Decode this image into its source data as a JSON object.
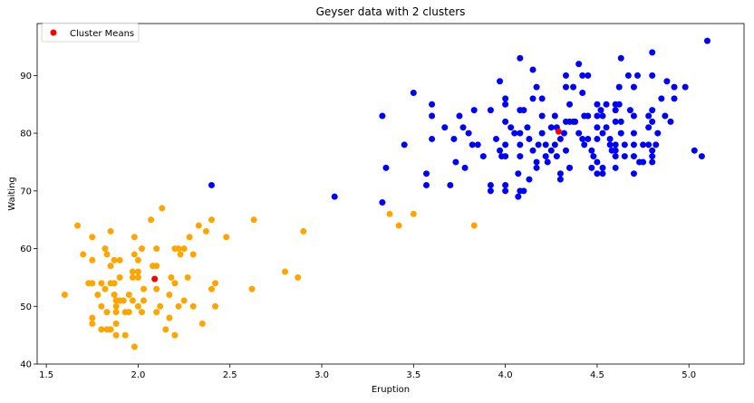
{
  "chart_data": {
    "type": "scatter",
    "title": "Geyser data with 2 clusters",
    "xlabel": "Eruption",
    "ylabel": "Waiting",
    "xlim": [
      1.45,
      5.3
    ],
    "ylim": [
      40,
      99
    ],
    "xticks": [
      "1.5",
      "2.0",
      "2.5",
      "3.0",
      "3.5",
      "4.0",
      "4.5",
      "5.0"
    ],
    "yticks": [
      "40",
      "50",
      "60",
      "70",
      "80",
      "90"
    ],
    "grid": false,
    "legend": {
      "position": "top-left",
      "label": "Cluster Means"
    },
    "colors": {
      "cluster_1": "#ffa500",
      "cluster_2": "#0000ff",
      "means": "#ff0000"
    },
    "series": [
      {
        "color": "#ffa500",
        "points": [
          [
            1.6,
            52
          ],
          [
            1.67,
            64
          ],
          [
            1.7,
            59
          ],
          [
            1.73,
            54
          ],
          [
            1.75,
            47
          ],
          [
            1.75,
            48
          ],
          [
            1.75,
            62
          ],
          [
            1.75,
            58
          ],
          [
            1.75,
            54
          ],
          [
            1.78,
            52
          ],
          [
            1.8,
            50
          ],
          [
            1.8,
            46
          ],
          [
            1.8,
            54
          ],
          [
            1.82,
            53
          ],
          [
            1.82,
            60
          ],
          [
            1.83,
            59
          ],
          [
            1.83,
            46
          ],
          [
            1.83,
            49
          ],
          [
            1.85,
            57
          ],
          [
            1.85,
            54
          ],
          [
            1.85,
            63
          ],
          [
            1.85,
            46
          ],
          [
            1.87,
            58
          ],
          [
            1.87,
            52
          ],
          [
            1.87,
            54
          ],
          [
            1.88,
            51
          ],
          [
            1.88,
            50
          ],
          [
            1.88,
            49
          ],
          [
            1.88,
            47
          ],
          [
            1.88,
            45
          ],
          [
            1.9,
            51
          ],
          [
            1.9,
            55
          ],
          [
            1.9,
            58
          ],
          [
            1.92,
            51
          ],
          [
            1.93,
            45
          ],
          [
            1.93,
            49
          ],
          [
            1.95,
            49
          ],
          [
            1.95,
            52
          ],
          [
            1.97,
            56
          ],
          [
            1.97,
            55
          ],
          [
            1.97,
            51
          ],
          [
            1.98,
            59
          ],
          [
            1.98,
            62
          ],
          [
            2.0,
            58
          ],
          [
            2.0,
            56
          ],
          [
            2.0,
            55
          ],
          [
            2.0,
            50
          ],
          [
            1.98,
            43
          ],
          [
            2.02,
            60
          ],
          [
            2.02,
            49
          ],
          [
            2.03,
            53
          ],
          [
            2.03,
            51
          ],
          [
            2.07,
            65
          ],
          [
            2.08,
            57
          ],
          [
            2.1,
            60
          ],
          [
            2.1,
            53
          ],
          [
            2.1,
            49
          ],
          [
            2.12,
            50
          ],
          [
            2.13,
            67
          ],
          [
            2.15,
            46
          ],
          [
            2.17,
            52
          ],
          [
            2.17,
            48
          ],
          [
            2.18,
            55
          ],
          [
            2.2,
            60
          ],
          [
            2.2,
            54
          ],
          [
            2.2,
            45
          ],
          [
            2.22,
            60
          ],
          [
            2.22,
            50
          ],
          [
            2.23,
            59
          ],
          [
            2.25,
            60
          ],
          [
            2.25,
            51
          ],
          [
            2.27,
            55
          ],
          [
            2.28,
            62
          ],
          [
            2.3,
            59
          ],
          [
            2.3,
            50
          ],
          [
            2.33,
            64
          ],
          [
            2.35,
            47
          ],
          [
            2.37,
            63
          ],
          [
            2.4,
            65
          ],
          [
            2.4,
            53
          ],
          [
            2.42,
            54
          ],
          [
            2.42,
            50
          ],
          [
            2.48,
            62
          ],
          [
            2.62,
            53
          ],
          [
            2.63,
            65
          ],
          [
            2.8,
            56
          ],
          [
            2.87,
            55
          ],
          [
            2.9,
            63
          ],
          [
            3.37,
            66
          ],
          [
            3.42,
            64
          ],
          [
            3.5,
            66
          ],
          [
            3.83,
            64
          ],
          [
            2.1,
            57
          ]
        ]
      },
      {
        "color": "#0000ff",
        "points": [
          [
            2.4,
            71
          ],
          [
            3.07,
            69
          ],
          [
            3.33,
            83
          ],
          [
            3.33,
            68
          ],
          [
            3.35,
            74
          ],
          [
            3.45,
            78
          ],
          [
            3.5,
            87
          ],
          [
            3.57,
            71
          ],
          [
            3.57,
            73
          ],
          [
            3.6,
            85
          ],
          [
            3.6,
            83
          ],
          [
            3.6,
            79
          ],
          [
            3.67,
            81
          ],
          [
            3.7,
            71
          ],
          [
            3.72,
            79
          ],
          [
            3.73,
            75
          ],
          [
            3.75,
            83
          ],
          [
            3.77,
            81
          ],
          [
            3.78,
            74
          ],
          [
            3.8,
            80
          ],
          [
            3.82,
            78
          ],
          [
            3.83,
            84
          ],
          [
            3.85,
            78
          ],
          [
            3.88,
            76
          ],
          [
            3.92,
            84
          ],
          [
            3.92,
            71
          ],
          [
            3.92,
            70
          ],
          [
            3.95,
            79
          ],
          [
            3.97,
            89
          ],
          [
            3.97,
            77
          ],
          [
            3.98,
            76
          ],
          [
            4.0,
            86
          ],
          [
            4.0,
            85
          ],
          [
            4.0,
            82
          ],
          [
            4.0,
            78
          ],
          [
            4.0,
            76
          ],
          [
            4.0,
            71
          ],
          [
            4.0,
            70
          ],
          [
            4.03,
            81
          ],
          [
            4.05,
            80
          ],
          [
            4.07,
            73
          ],
          [
            4.07,
            69
          ],
          [
            4.08,
            93
          ],
          [
            4.08,
            84
          ],
          [
            4.08,
            80
          ],
          [
            4.08,
            78
          ],
          [
            4.08,
            76
          ],
          [
            4.08,
            70
          ],
          [
            4.1,
            84
          ],
          [
            4.1,
            70
          ],
          [
            4.12,
            81
          ],
          [
            4.13,
            79
          ],
          [
            4.13,
            72
          ],
          [
            4.15,
            91
          ],
          [
            4.15,
            86
          ],
          [
            4.15,
            77
          ],
          [
            4.17,
            88
          ],
          [
            4.17,
            75
          ],
          [
            4.17,
            74
          ],
          [
            4.18,
            78
          ],
          [
            4.2,
            86
          ],
          [
            4.2,
            83
          ],
          [
            4.2,
            80
          ],
          [
            4.22,
            78
          ],
          [
            4.22,
            76
          ],
          [
            4.23,
            75
          ],
          [
            4.25,
            81
          ],
          [
            4.25,
            77
          ],
          [
            4.27,
            83
          ],
          [
            4.27,
            78
          ],
          [
            4.28,
            76
          ],
          [
            4.28,
            81
          ],
          [
            4.3,
            79
          ],
          [
            4.3,
            73
          ],
          [
            4.3,
            72
          ],
          [
            4.32,
            80
          ],
          [
            4.33,
            90
          ],
          [
            4.33,
            88
          ],
          [
            4.33,
            82
          ],
          [
            4.33,
            77
          ],
          [
            4.35,
            85
          ],
          [
            4.35,
            82
          ],
          [
            4.35,
            74
          ],
          [
            4.37,
            82
          ],
          [
            4.37,
            88
          ],
          [
            4.38,
            82
          ],
          [
            4.4,
            92
          ],
          [
            4.4,
            80
          ],
          [
            4.42,
            90
          ],
          [
            4.42,
            87
          ],
          [
            4.42,
            79
          ],
          [
            4.43,
            83
          ],
          [
            4.43,
            78
          ],
          [
            4.45,
            90
          ],
          [
            4.45,
            83
          ],
          [
            4.45,
            79
          ],
          [
            4.47,
            74
          ],
          [
            4.47,
            77
          ],
          [
            4.48,
            76
          ],
          [
            4.5,
            85
          ],
          [
            4.5,
            83
          ],
          [
            4.5,
            81
          ],
          [
            4.5,
            79
          ],
          [
            4.5,
            75
          ],
          [
            4.5,
            73
          ],
          [
            4.52,
            84
          ],
          [
            4.53,
            83
          ],
          [
            4.53,
            80
          ],
          [
            4.53,
            74
          ],
          [
            4.53,
            73
          ],
          [
            4.55,
            85
          ],
          [
            4.55,
            81
          ],
          [
            4.57,
            78
          ],
          [
            4.57,
            79
          ],
          [
            4.58,
            77
          ],
          [
            4.6,
            85
          ],
          [
            4.6,
            84
          ],
          [
            4.6,
            82
          ],
          [
            4.6,
            78
          ],
          [
            4.6,
            77
          ],
          [
            4.6,
            76
          ],
          [
            4.6,
            74
          ],
          [
            4.62,
            88
          ],
          [
            4.62,
            85
          ],
          [
            4.63,
            93
          ],
          [
            4.63,
            82
          ],
          [
            4.63,
            80
          ],
          [
            4.65,
            78
          ],
          [
            4.65,
            76
          ],
          [
            4.67,
            90
          ],
          [
            4.68,
            84
          ],
          [
            4.7,
            88
          ],
          [
            4.7,
            83
          ],
          [
            4.7,
            80
          ],
          [
            4.7,
            78
          ],
          [
            4.7,
            76
          ],
          [
            4.7,
            73
          ],
          [
            4.72,
            90
          ],
          [
            4.73,
            75
          ],
          [
            4.75,
            75
          ],
          [
            4.75,
            78
          ],
          [
            4.78,
            83
          ],
          [
            4.78,
            81
          ],
          [
            4.78,
            78
          ],
          [
            4.8,
            94
          ],
          [
            4.8,
            90
          ],
          [
            4.8,
            84
          ],
          [
            4.8,
            82
          ],
          [
            4.8,
            76
          ],
          [
            4.8,
            75
          ],
          [
            4.8,
            77
          ],
          [
            4.82,
            78
          ],
          [
            4.83,
            80
          ],
          [
            4.85,
            86
          ],
          [
            4.87,
            83
          ],
          [
            4.88,
            89
          ],
          [
            4.9,
            82
          ],
          [
            4.92,
            88
          ],
          [
            4.92,
            86
          ],
          [
            4.98,
            88
          ],
          [
            5.03,
            77
          ],
          [
            5.07,
            76
          ],
          [
            5.1,
            96
          ],
          [
            4.35,
            74
          ]
        ]
      }
    ],
    "means": [
      [
        2.09,
        54.75
      ],
      [
        4.29,
        80.28
      ]
    ]
  }
}
